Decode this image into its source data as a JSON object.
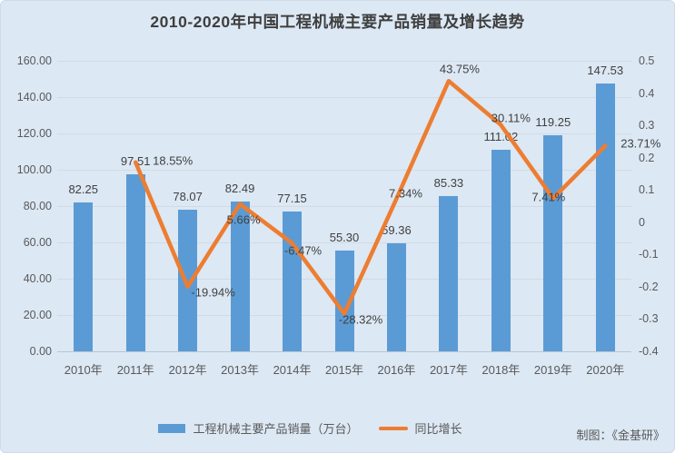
{
  "title": "2010-2020年中国工程机械主要产品销量及增长趋势",
  "credit": "制图：《金基研》",
  "legend": {
    "bar_label": "工程机械主要产品销量（万台）",
    "line_label": "同比增长"
  },
  "colors": {
    "background": "#dce8f4",
    "bar": "#5b9bd5",
    "line": "#ed7d31",
    "title_text": "#3f3f3f",
    "axis_text": "#595959",
    "gridline": "#d2dbe5"
  },
  "chart_data": {
    "type": "bar",
    "subtype": "bar-line-combo",
    "title": "2010-2020年中国工程机械主要产品销量及增长趋势",
    "categories": [
      "2010年",
      "2011年",
      "2012年",
      "2013年",
      "2014年",
      "2015年",
      "2016年",
      "2017年",
      "2018年",
      "2019年",
      "2020年"
    ],
    "series": [
      {
        "name": "工程机械主要产品销量（万台）",
        "type": "bar",
        "axis": "left",
        "values": [
          82.25,
          97.51,
          78.07,
          82.49,
          77.15,
          55.3,
          59.36,
          85.33,
          111.02,
          119.25,
          147.53
        ],
        "labels": [
          "82.25",
          "97.51",
          "78.07",
          "82.49",
          "77.15",
          "55.30",
          "59.36",
          "85.33",
          "111.02",
          "119.25",
          "147.53"
        ]
      },
      {
        "name": "同比增长",
        "type": "line",
        "axis": "right",
        "start_category_index": 1,
        "values": [
          18.55,
          -19.94,
          5.66,
          -6.47,
          -28.32,
          7.34,
          43.75,
          30.11,
          7.41,
          23.71
        ],
        "labels": [
          "18.55%",
          "-19.94%",
          "5.66%",
          "-6.47%",
          "-28.32%",
          "7.34%",
          "43.75%",
          "30.11%",
          "7.41%",
          "23.71%"
        ],
        "label_sides": [
          "right",
          "below",
          "below",
          "below",
          "below",
          "above",
          "above",
          "above",
          "center",
          "right"
        ]
      }
    ],
    "left_axis": {
      "min": 0,
      "max": 160,
      "step": 20,
      "ticks": [
        "0.00",
        "20.00",
        "40.00",
        "60.00",
        "80.00",
        "100.00",
        "120.00",
        "140.00",
        "160.00"
      ]
    },
    "right_axis": {
      "min": -0.4,
      "max": 0.5,
      "step": 0.1,
      "ticks": [
        "0.5",
        "0.4",
        "0.3",
        "0.2",
        "0.1",
        "0",
        "-0.1",
        "-0.2",
        "-0.3",
        "-0.4"
      ]
    },
    "grid": true,
    "legend_position": "bottom"
  }
}
